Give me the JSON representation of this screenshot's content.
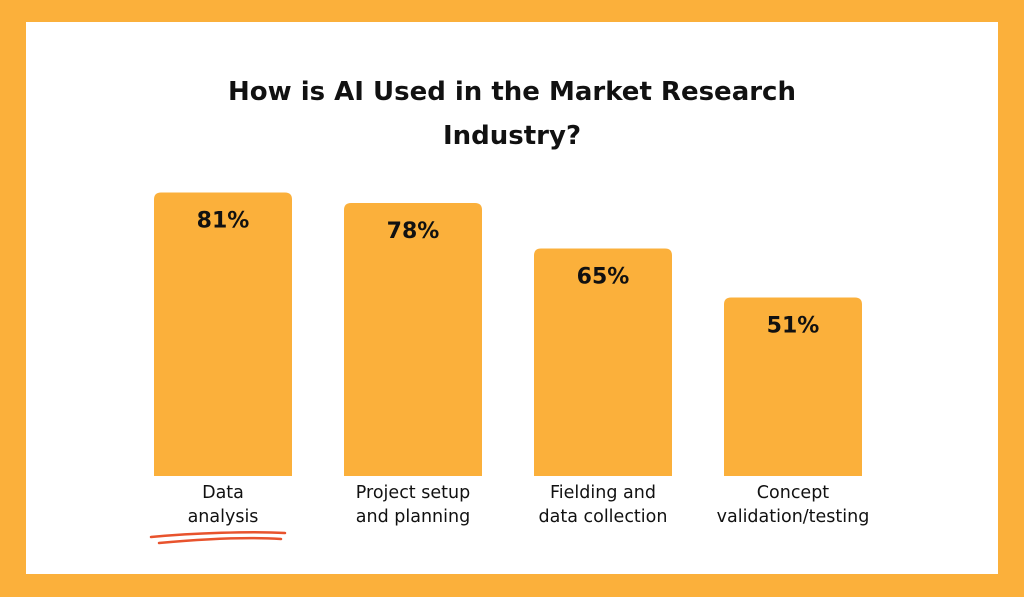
{
  "title_lines": [
    "How is AI Used in the Market Research",
    "Industry?"
  ],
  "colors": {
    "bar": "#FBB03B",
    "frame": "#FBB03B",
    "background": "#FFFFFF",
    "text": "#111111",
    "underline": "#E8532D"
  },
  "chart_data": {
    "type": "bar",
    "title": "How is AI Used in the Market Research Industry?",
    "categories": [
      "Data analysis",
      "Project setup and planning",
      "Fielding and data collection",
      "Concept validation/testing"
    ],
    "category_lines": [
      [
        "Data",
        "analysis"
      ],
      [
        "Project setup",
        "and planning"
      ],
      [
        "Fielding and",
        "data collection"
      ],
      [
        "Concept",
        "validation/testing"
      ]
    ],
    "values": [
      81,
      78,
      65,
      51
    ],
    "value_labels": [
      "81%",
      "78%",
      "65%",
      "51%"
    ],
    "ylim": [
      0,
      100
    ],
    "grid": false,
    "legend": "none",
    "highlight": "Data analysis"
  }
}
